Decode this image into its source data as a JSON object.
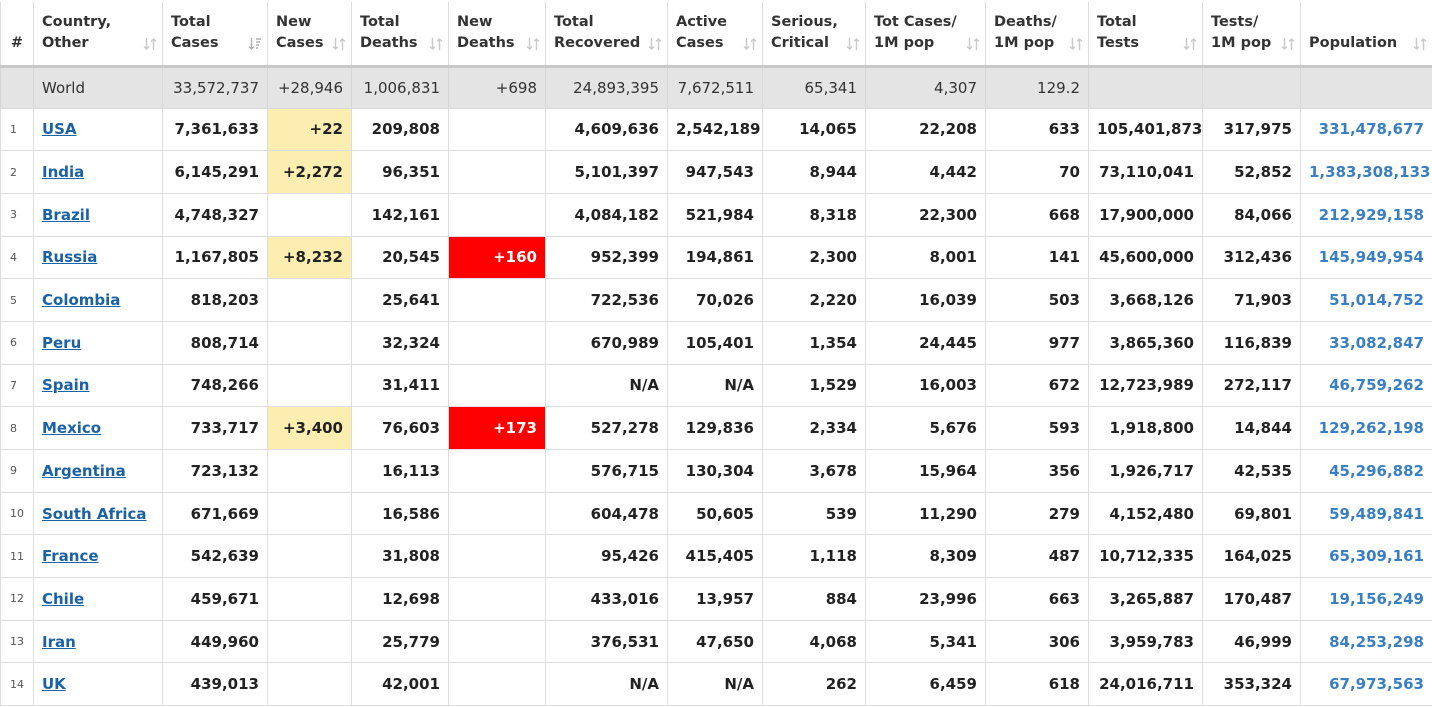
{
  "table": {
    "headers": [
      {
        "key": "num",
        "lines": [
          "#"
        ]
      },
      {
        "key": "country",
        "lines": [
          "Country,",
          "Other"
        ]
      },
      {
        "key": "total_cases",
        "lines": [
          "Total",
          "Cases"
        ]
      },
      {
        "key": "new_cases",
        "lines": [
          "New",
          "Cases"
        ]
      },
      {
        "key": "total_deaths",
        "lines": [
          "Total",
          "Deaths"
        ]
      },
      {
        "key": "new_deaths",
        "lines": [
          "New",
          "Deaths"
        ]
      },
      {
        "key": "total_recovered",
        "lines": [
          "Total",
          "Recovered"
        ]
      },
      {
        "key": "active_cases",
        "lines": [
          "Active",
          "Cases"
        ]
      },
      {
        "key": "serious_critical",
        "lines": [
          "Serious,",
          "Critical"
        ]
      },
      {
        "key": "tot_cases_per_1m",
        "lines": [
          "Tot Cases/",
          "1M pop"
        ]
      },
      {
        "key": "deaths_per_1m",
        "lines": [
          "Deaths/",
          "1M pop"
        ]
      },
      {
        "key": "total_tests",
        "lines": [
          "Total",
          "Tests"
        ]
      },
      {
        "key": "tests_per_1m",
        "lines": [
          "Tests/",
          "1M pop"
        ]
      },
      {
        "key": "population",
        "lines": [
          "",
          "Population"
        ]
      }
    ],
    "world": {
      "country": "World",
      "total_cases": "33,572,737",
      "new_cases": "+28,946",
      "total_deaths": "1,006,831",
      "new_deaths": "+698",
      "total_recovered": "24,893,395",
      "active_cases": "7,672,511",
      "serious_critical": "65,341",
      "tot_cases_per_1m": "4,307",
      "deaths_per_1m": "129.2",
      "total_tests": "",
      "tests_per_1m": "",
      "population": ""
    },
    "rows": [
      {
        "num": "1",
        "country": "USA",
        "total_cases": "7,361,633",
        "new_cases": "+22",
        "total_deaths": "209,808",
        "new_deaths": "",
        "total_recovered": "4,609,636",
        "active_cases": "2,542,189",
        "serious_critical": "14,065",
        "tot_cases_per_1m": "22,208",
        "deaths_per_1m": "633",
        "total_tests": "105,401,873",
        "tests_per_1m": "317,975",
        "population": "331,478,677"
      },
      {
        "num": "2",
        "country": "India",
        "total_cases": "6,145,291",
        "new_cases": "+2,272",
        "total_deaths": "96,351",
        "new_deaths": "",
        "total_recovered": "5,101,397",
        "active_cases": "947,543",
        "serious_critical": "8,944",
        "tot_cases_per_1m": "4,442",
        "deaths_per_1m": "70",
        "total_tests": "73,110,041",
        "tests_per_1m": "52,852",
        "population": "1,383,308,133"
      },
      {
        "num": "3",
        "country": "Brazil",
        "total_cases": "4,748,327",
        "new_cases": "",
        "total_deaths": "142,161",
        "new_deaths": "",
        "total_recovered": "4,084,182",
        "active_cases": "521,984",
        "serious_critical": "8,318",
        "tot_cases_per_1m": "22,300",
        "deaths_per_1m": "668",
        "total_tests": "17,900,000",
        "tests_per_1m": "84,066",
        "population": "212,929,158"
      },
      {
        "num": "4",
        "country": "Russia",
        "total_cases": "1,167,805",
        "new_cases": "+8,232",
        "total_deaths": "20,545",
        "new_deaths": "+160",
        "total_recovered": "952,399",
        "active_cases": "194,861",
        "serious_critical": "2,300",
        "tot_cases_per_1m": "8,001",
        "deaths_per_1m": "141",
        "total_tests": "45,600,000",
        "tests_per_1m": "312,436",
        "population": "145,949,954"
      },
      {
        "num": "5",
        "country": "Colombia",
        "total_cases": "818,203",
        "new_cases": "",
        "total_deaths": "25,641",
        "new_deaths": "",
        "total_recovered": "722,536",
        "active_cases": "70,026",
        "serious_critical": "2,220",
        "tot_cases_per_1m": "16,039",
        "deaths_per_1m": "503",
        "total_tests": "3,668,126",
        "tests_per_1m": "71,903",
        "population": "51,014,752"
      },
      {
        "num": "6",
        "country": "Peru",
        "total_cases": "808,714",
        "new_cases": "",
        "total_deaths": "32,324",
        "new_deaths": "",
        "total_recovered": "670,989",
        "active_cases": "105,401",
        "serious_critical": "1,354",
        "tot_cases_per_1m": "24,445",
        "deaths_per_1m": "977",
        "total_tests": "3,865,360",
        "tests_per_1m": "116,839",
        "population": "33,082,847"
      },
      {
        "num": "7",
        "country": "Spain",
        "total_cases": "748,266",
        "new_cases": "",
        "total_deaths": "31,411",
        "new_deaths": "",
        "total_recovered": "N/A",
        "active_cases": "N/A",
        "serious_critical": "1,529",
        "tot_cases_per_1m": "16,003",
        "deaths_per_1m": "672",
        "total_tests": "12,723,989",
        "tests_per_1m": "272,117",
        "population": "46,759,262"
      },
      {
        "num": "8",
        "country": "Mexico",
        "total_cases": "733,717",
        "new_cases": "+3,400",
        "total_deaths": "76,603",
        "new_deaths": "+173",
        "total_recovered": "527,278",
        "active_cases": "129,836",
        "serious_critical": "2,334",
        "tot_cases_per_1m": "5,676",
        "deaths_per_1m": "593",
        "total_tests": "1,918,800",
        "tests_per_1m": "14,844",
        "population": "129,262,198"
      },
      {
        "num": "9",
        "country": "Argentina",
        "total_cases": "723,132",
        "new_cases": "",
        "total_deaths": "16,113",
        "new_deaths": "",
        "total_recovered": "576,715",
        "active_cases": "130,304",
        "serious_critical": "3,678",
        "tot_cases_per_1m": "15,964",
        "deaths_per_1m": "356",
        "total_tests": "1,926,717",
        "tests_per_1m": "42,535",
        "population": "45,296,882"
      },
      {
        "num": "10",
        "country": "South Africa",
        "total_cases": "671,669",
        "new_cases": "",
        "total_deaths": "16,586",
        "new_deaths": "",
        "total_recovered": "604,478",
        "active_cases": "50,605",
        "serious_critical": "539",
        "tot_cases_per_1m": "11,290",
        "deaths_per_1m": "279",
        "total_tests": "4,152,480",
        "tests_per_1m": "69,801",
        "population": "59,489,841"
      },
      {
        "num": "11",
        "country": "France",
        "total_cases": "542,639",
        "new_cases": "",
        "total_deaths": "31,808",
        "new_deaths": "",
        "total_recovered": "95,426",
        "active_cases": "415,405",
        "serious_critical": "1,118",
        "tot_cases_per_1m": "8,309",
        "deaths_per_1m": "487",
        "total_tests": "10,712,335",
        "tests_per_1m": "164,025",
        "population": "65,309,161"
      },
      {
        "num": "12",
        "country": "Chile",
        "total_cases": "459,671",
        "new_cases": "",
        "total_deaths": "12,698",
        "new_deaths": "",
        "total_recovered": "433,016",
        "active_cases": "13,957",
        "serious_critical": "884",
        "tot_cases_per_1m": "23,996",
        "deaths_per_1m": "663",
        "total_tests": "3,265,887",
        "tests_per_1m": "170,487",
        "population": "19,156,249"
      },
      {
        "num": "13",
        "country": "Iran",
        "total_cases": "449,960",
        "new_cases": "",
        "total_deaths": "25,779",
        "new_deaths": "",
        "total_recovered": "376,531",
        "active_cases": "47,650",
        "serious_critical": "4,068",
        "tot_cases_per_1m": "5,341",
        "deaths_per_1m": "306",
        "total_tests": "3,959,783",
        "tests_per_1m": "46,999",
        "population": "84,253,298"
      },
      {
        "num": "14",
        "country": "UK",
        "total_cases": "439,013",
        "new_cases": "",
        "total_deaths": "42,001",
        "new_deaths": "",
        "total_recovered": "N/A",
        "active_cases": "N/A",
        "serious_critical": "262",
        "tot_cases_per_1m": "6,459",
        "deaths_per_1m": "618",
        "total_tests": "24,016,711",
        "tests_per_1m": "353,324",
        "population": "67,973,563"
      }
    ],
    "sorted_column": "total_cases",
    "sort_icons": {
      "default": "sort-both-icon",
      "active": "sort-desc-icon"
    },
    "colors": {
      "new_cases_highlight": "#fcedb0",
      "new_deaths_highlight": "#ff0000",
      "link": "#1b62a4",
      "population": "#3a7fc1",
      "world_row": "#e4e4e4"
    }
  }
}
